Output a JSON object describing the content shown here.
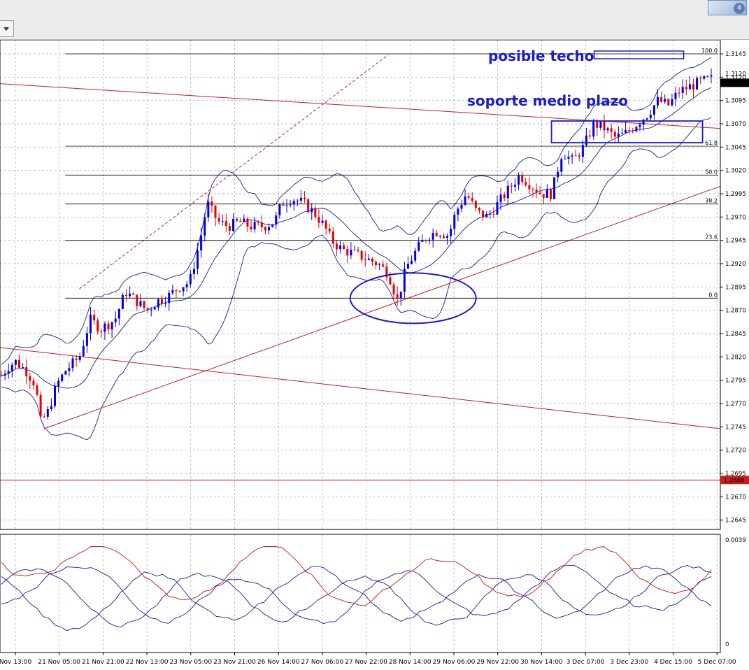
{
  "window": {
    "badge": "4"
  },
  "colors": {
    "bull_candle": "#0000e6",
    "bear_candle": "#e60000",
    "bollinger": "#1a1aa0",
    "trendline": "#c81e1e",
    "fibo": "#000000",
    "annotation": "#1c1cc8",
    "grid": "#9aa6b8"
  },
  "chart_data": [
    {
      "type": "candlestick",
      "title": "",
      "ylim": [
        1.2635,
        1.316
      ],
      "y_ticks": [
        "1.3145",
        "1.3120",
        "1.3095",
        "1.3070",
        "1.3045",
        "1.3020",
        "1.2995",
        "1.2970",
        "1.2945",
        "1.2920",
        "1.2895",
        "1.2870",
        "1.2845",
        "1.2820",
        "1.2795",
        "1.2770",
        "1.2745",
        "1.2720",
        "1.2695",
        "1.2670",
        "1.2645"
      ],
      "x_ticks": [
        "Nov 13:00",
        "21 Nov 05:00",
        "21 Nov 21:00",
        "22 Nov 13:00",
        "23 Nov 05:00",
        "23 Nov 21:00",
        "26 Nov 14:00",
        "27 Nov 06:00",
        "27 Nov 22:00",
        "28 Nov 14:00",
        "29 Nov 06:00",
        "29 Nov 22:00",
        "30 Nov 14:00",
        "3 Dec 07:00",
        "3 Dec 23:00",
        "4 Dec 15:00",
        "5 Dec 07:00"
      ],
      "current_price": "1.3114",
      "prev_price": "1.3120",
      "horizontal_line": "1.2688",
      "fibo_levels": [
        {
          "label": "100.0",
          "value": 1.3145
        },
        {
          "label": "61.8",
          "value": 1.3046
        },
        {
          "label": "50.0",
          "value": 1.3015
        },
        {
          "label": "38.2",
          "value": 1.2984
        },
        {
          "label": "23.6",
          "value": 1.2945
        },
        {
          "label": "0.0",
          "value": 1.2883
        }
      ],
      "annotations": {
        "top": "posible techo",
        "mid": "soporte medio plazo"
      },
      "close_path": [
        [
          0,
          1.28
        ],
        [
          0.01,
          1.281
        ],
        [
          0.02,
          1.2815
        ],
        [
          0.035,
          1.2805
        ],
        [
          0.048,
          1.279
        ],
        [
          0.055,
          1.275
        ],
        [
          0.065,
          1.276
        ],
        [
          0.078,
          1.279
        ],
        [
          0.09,
          1.2805
        ],
        [
          0.11,
          1.282
        ],
        [
          0.125,
          1.286
        ],
        [
          0.14,
          1.285
        ],
        [
          0.16,
          1.286
        ],
        [
          0.175,
          1.289
        ],
        [
          0.19,
          1.288
        ],
        [
          0.205,
          1.287
        ],
        [
          0.22,
          1.288
        ],
        [
          0.235,
          1.2885
        ],
        [
          0.25,
          1.2895
        ],
        [
          0.265,
          1.29
        ],
        [
          0.28,
          1.2945
        ],
        [
          0.29,
          1.2985
        ],
        [
          0.305,
          1.2965
        ],
        [
          0.32,
          1.296
        ],
        [
          0.335,
          1.2965
        ],
        [
          0.35,
          1.296
        ],
        [
          0.37,
          1.296
        ],
        [
          0.385,
          1.2965
        ],
        [
          0.395,
          1.2985
        ],
        [
          0.41,
          1.299
        ],
        [
          0.425,
          1.2985
        ],
        [
          0.44,
          1.2975
        ],
        [
          0.455,
          1.296
        ],
        [
          0.465,
          1.2945
        ],
        [
          0.48,
          1.2935
        ],
        [
          0.5,
          1.293
        ],
        [
          0.515,
          1.2925
        ],
        [
          0.53,
          1.292
        ],
        [
          0.545,
          1.291
        ],
        [
          0.558,
          1.288
        ],
        [
          0.57,
          1.2915
        ],
        [
          0.585,
          1.2935
        ],
        [
          0.6,
          1.295
        ],
        [
          0.615,
          1.2955
        ],
        [
          0.63,
          1.295
        ],
        [
          0.64,
          1.2975
        ],
        [
          0.655,
          1.2995
        ],
        [
          0.67,
          1.2975
        ],
        [
          0.685,
          1.297
        ],
        [
          0.7,
          1.2985
        ],
        [
          0.715,
          1.3
        ],
        [
          0.73,
          1.3015
        ],
        [
          0.745,
          1.3005
        ],
        [
          0.76,
          1.2995
        ],
        [
          0.775,
          1.2995
        ],
        [
          0.79,
          1.304
        ],
        [
          0.805,
          1.303
        ],
        [
          0.82,
          1.3045
        ],
        [
          0.835,
          1.307
        ],
        [
          0.85,
          1.3065
        ],
        [
          0.865,
          1.3055
        ],
        [
          0.88,
          1.306
        ],
        [
          0.895,
          1.307
        ],
        [
          0.91,
          1.308
        ],
        [
          0.925,
          1.3095
        ],
        [
          0.94,
          1.309
        ],
        [
          0.955,
          1.3105
        ],
        [
          0.97,
          1.311
        ],
        [
          0.985,
          1.3115
        ],
        [
          1,
          1.3118
        ]
      ]
    },
    {
      "type": "line",
      "title": "",
      "ylim": [
        0,
        0.0039
      ],
      "y_ticks": [
        "0.0039",
        "0"
      ],
      "series_count": 4
    }
  ]
}
